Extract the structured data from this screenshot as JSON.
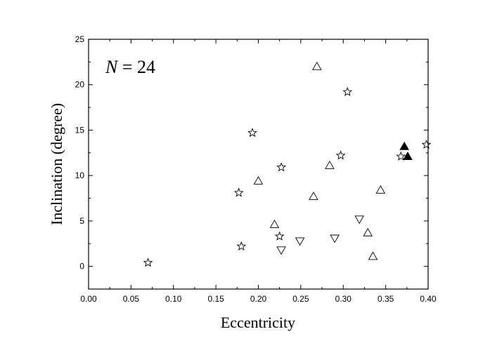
{
  "chart_data": {
    "type": "scatter",
    "title": "",
    "xlabel": "Eccentricity",
    "ylabel": "Inclination (degree)",
    "xlim": [
      0.0,
      0.4
    ],
    "ylim": [
      -2.5,
      25
    ],
    "xticks": [
      "0.00",
      "0.05",
      "0.10",
      "0.15",
      "0.20",
      "0.25",
      "0.30",
      "0.35",
      "0.40"
    ],
    "yticks": [
      "0",
      "5",
      "10",
      "15",
      "20",
      "25"
    ],
    "grid": false,
    "annotation": {
      "italic": "N",
      "rest": " = 24"
    },
    "series": [
      {
        "marker": "star-open",
        "points": [
          [
            0.07,
            0.4
          ],
          [
            0.177,
            8.1
          ],
          [
            0.18,
            2.2
          ],
          [
            0.193,
            14.7
          ],
          [
            0.225,
            3.3
          ],
          [
            0.227,
            10.9
          ],
          [
            0.297,
            12.2
          ],
          [
            0.305,
            19.2
          ],
          [
            0.368,
            12.1
          ],
          [
            0.398,
            13.4
          ]
        ]
      },
      {
        "marker": "triangle-up-open",
        "points": [
          [
            0.2,
            9.4
          ],
          [
            0.219,
            4.6
          ],
          [
            0.265,
            7.7
          ],
          [
            0.269,
            22.0
          ],
          [
            0.284,
            11.1
          ],
          [
            0.329,
            3.7
          ],
          [
            0.335,
            1.1
          ],
          [
            0.344,
            8.4
          ]
        ]
      },
      {
        "marker": "triangle-down-open",
        "points": [
          [
            0.227,
            1.8
          ],
          [
            0.249,
            2.8
          ],
          [
            0.29,
            3.1
          ],
          [
            0.319,
            5.2
          ]
        ]
      },
      {
        "marker": "triangle-up-filled",
        "points": [
          [
            0.372,
            13.2
          ],
          [
            0.376,
            12.1
          ]
        ]
      }
    ]
  }
}
